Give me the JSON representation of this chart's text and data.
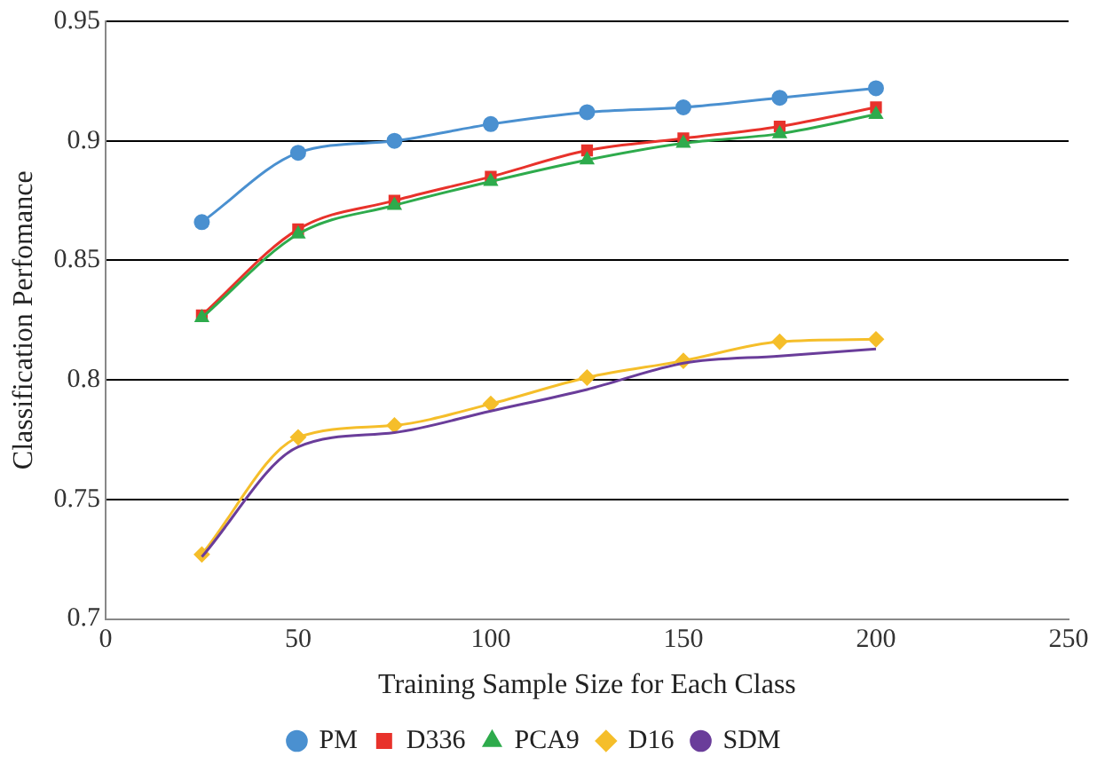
{
  "chart_data": {
    "type": "line",
    "xlabel": "Training Sample Size for Each Class",
    "ylabel": "Classification Perfomance",
    "x": [
      25,
      50,
      75,
      100,
      125,
      150,
      175,
      200
    ],
    "series": [
      {
        "name": "PM",
        "color": "#4a90d0",
        "marker": "circle",
        "values": [
          0.866,
          0.895,
          0.9,
          0.907,
          0.912,
          0.914,
          0.918,
          0.922
        ]
      },
      {
        "name": "D336",
        "color": "#e8322b",
        "marker": "square",
        "values": [
          0.827,
          0.863,
          0.875,
          0.885,
          0.896,
          0.901,
          0.906,
          0.914
        ]
      },
      {
        "name": "PCA9",
        "color": "#2eab4c",
        "marker": "triangle",
        "values": [
          0.826,
          0.861,
          0.873,
          0.883,
          0.892,
          0.899,
          0.903,
          0.911
        ]
      },
      {
        "name": "D16",
        "color": "#f5be2a",
        "marker": "diamond",
        "values": [
          0.727,
          0.776,
          0.781,
          0.79,
          0.801,
          0.808,
          0.816,
          0.817
        ]
      },
      {
        "name": "SDM",
        "color": "#6a3d9a",
        "marker": "none",
        "values": [
          0.726,
          0.772,
          0.778,
          0.787,
          0.796,
          0.807,
          0.81,
          0.813
        ]
      }
    ],
    "xlim": [
      0,
      250
    ],
    "xticks": [
      0,
      50,
      100,
      150,
      200,
      250
    ],
    "ylim": [
      0.7,
      0.95
    ],
    "yticks": [
      0.7,
      0.75,
      0.8,
      0.85,
      0.9,
      0.95
    ],
    "grid": "y",
    "legend": "bottom"
  }
}
